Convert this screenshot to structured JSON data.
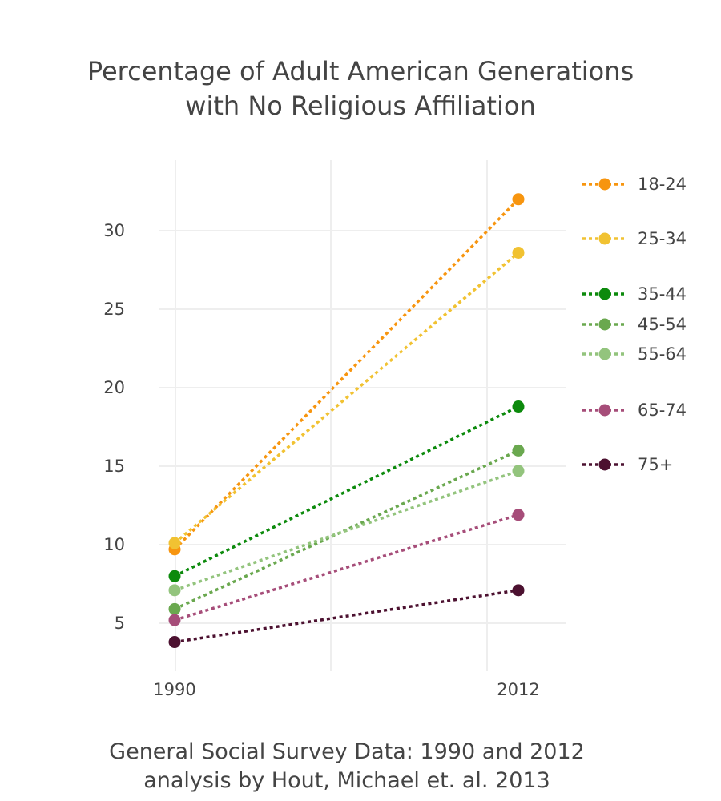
{
  "chart_data": {
    "type": "line",
    "title": [
      "Percentage of Adult American Generations",
      "with No Religious Affiliation"
    ],
    "subtitle": [
      "General Social Survey Data: 1990 and 2012",
      "analysis by Hout, Michael et. al. 2013"
    ],
    "x": [
      1990,
      2012
    ],
    "x_tick_labels": [
      "1990",
      "2012"
    ],
    "y_ticks": [
      5,
      10,
      15,
      20,
      25,
      30
    ],
    "y_tick_labels": [
      "5",
      "10",
      "15",
      "20",
      "25",
      "30"
    ],
    "ylim": [
      1.8,
      34
    ],
    "grid": true,
    "legend_position": "right",
    "series": [
      {
        "name": "18-24",
        "color": "#f7950f",
        "values": [
          9.7,
          32.0
        ]
      },
      {
        "name": "25-34",
        "color": "#f1c232",
        "values": [
          10.1,
          28.6
        ]
      },
      {
        "name": "35-44",
        "color": "#0c8a0c",
        "values": [
          8.0,
          18.8
        ]
      },
      {
        "name": "45-54",
        "color": "#6aa84f",
        "values": [
          5.9,
          16.0
        ]
      },
      {
        "name": "55-64",
        "color": "#93c47d",
        "values": [
          7.1,
          14.7
        ]
      },
      {
        "name": "65-74",
        "color": "#a64d79",
        "values": [
          5.2,
          11.9
        ]
      },
      {
        "name": "75+",
        "color": "#4c1130",
        "values": [
          3.8,
          7.1
        ]
      }
    ]
  }
}
